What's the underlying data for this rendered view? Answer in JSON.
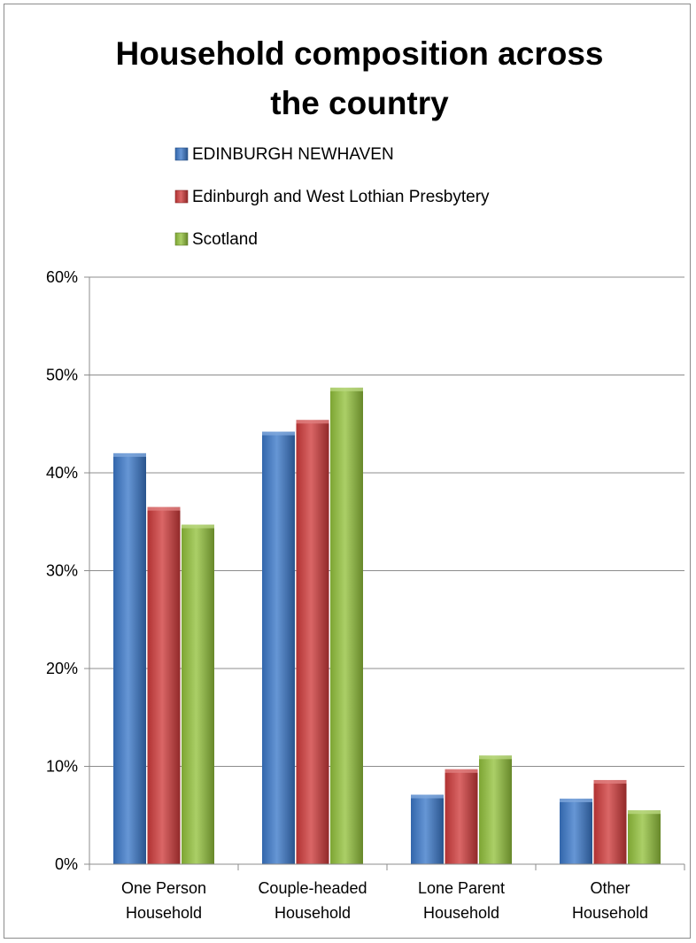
{
  "chart_data": {
    "type": "bar",
    "title": "Household composition across the country",
    "title_lines": [
      "Household composition across",
      "the country"
    ],
    "categories": [
      "One Person Household",
      "Couple-headed Household",
      "Lone Parent Household",
      "Other Household"
    ],
    "category_lines": [
      [
        "One Person",
        "Household"
      ],
      [
        "Couple-headed",
        "Household"
      ],
      [
        "Lone Parent",
        "Household"
      ],
      [
        "Other",
        "Household"
      ]
    ],
    "series": [
      {
        "name": "EDINBURGH NEWHAVEN",
        "color": "#3b78c9",
        "values": [
          42.0,
          44.2,
          7.1,
          6.7
        ]
      },
      {
        "name": "Edinburgh and West Lothian Presbytery",
        "color": "#cf3b3b",
        "values": [
          36.5,
          45.4,
          9.7,
          8.6
        ]
      },
      {
        "name": "Scotland",
        "color": "#93c23c",
        "values": [
          34.7,
          48.7,
          11.1,
          5.5
        ]
      }
    ],
    "ylim": [
      0,
      60
    ],
    "yticks": [
      0,
      10,
      20,
      30,
      40,
      50,
      60
    ],
    "ytick_labels": [
      "0%",
      "10%",
      "20%",
      "30%",
      "40%",
      "50%",
      "60%"
    ],
    "xlabel": "",
    "ylabel": "",
    "grid": true,
    "legend_position": "top"
  }
}
